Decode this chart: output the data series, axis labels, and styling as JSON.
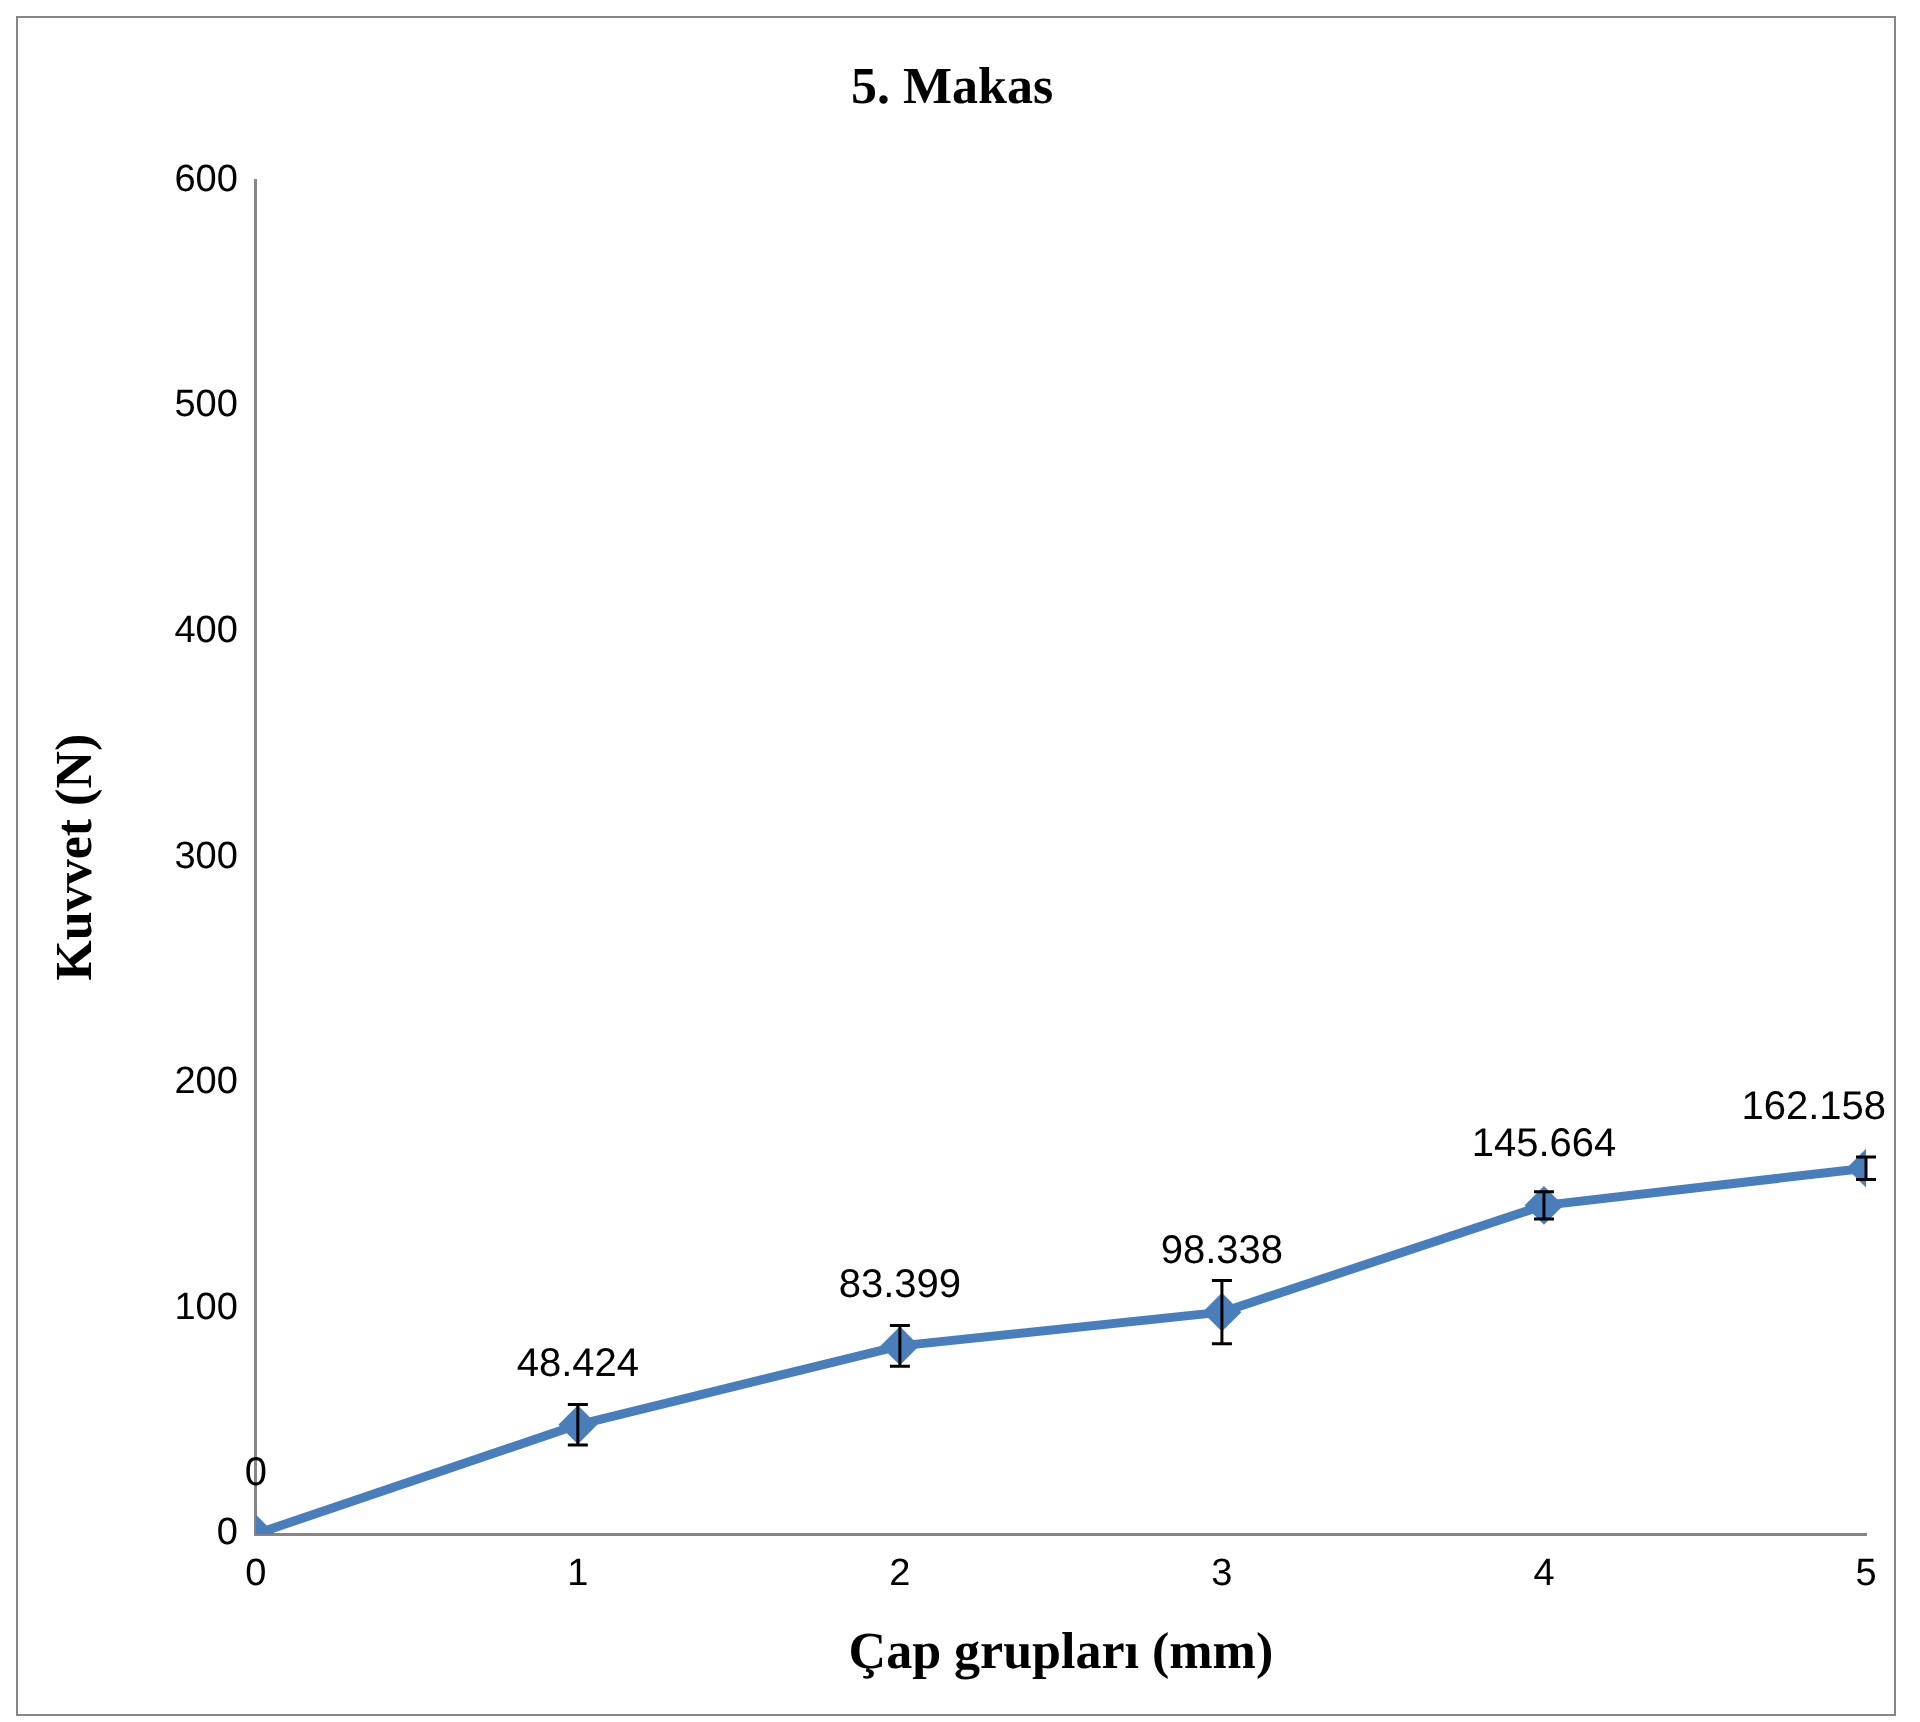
{
  "chart_data": {
    "type": "line",
    "title": "5. Makas",
    "xlabel": "Çap grupları (mm)",
    "ylabel": "Kuvvet (N)",
    "x": [
      0,
      1,
      2,
      3,
      4,
      5
    ],
    "series": [
      {
        "color": "#4a7ebb",
        "values": [
          0,
          48.424,
          83.399,
          98.338,
          145.664,
          162.158
        ],
        "errors": [
          null,
          9,
          9,
          14,
          6,
          5
        ]
      }
    ],
    "xlim": [
      0,
      5
    ],
    "xticks": [
      0,
      1,
      2,
      3,
      4,
      5
    ],
    "ylim": [
      0,
      600
    ],
    "yticks": [
      0,
      100,
      200,
      300,
      400,
      500,
      600
    ],
    "grid": false,
    "legend": false,
    "marker": "diamond",
    "line_style": "solid",
    "data_labels": true
  }
}
